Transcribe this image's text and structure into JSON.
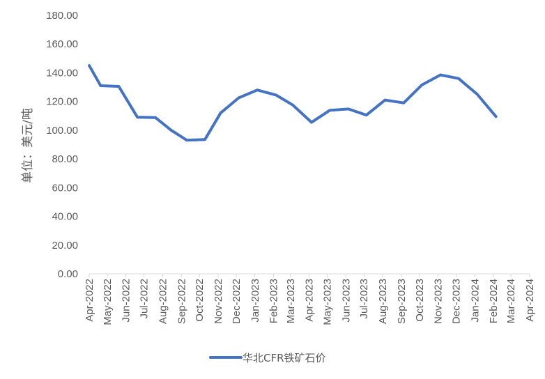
{
  "chart_data": {
    "type": "line",
    "title": "",
    "xlabel": "",
    "ylabel": "单位：美元/吨",
    "ylim": [
      0,
      180
    ],
    "yticks": [
      "0.00",
      "20.00",
      "40.00",
      "60.00",
      "80.00",
      "100.00",
      "120.00",
      "140.00",
      "160.00",
      "180.00"
    ],
    "x_tick_labels": [
      "Apr-2022",
      "May-2022",
      "Jun-2022",
      "Jul-2022",
      "Aug-2022",
      "Sep-2022",
      "Oct-2022",
      "Nov-2022",
      "Dec-2022",
      "Jan-2023",
      "Feb-2023",
      "Mar-2023",
      "Apr-2023",
      "May-2023",
      "Jun-2023",
      "Jul-2023",
      "Aug-2023",
      "Sep-2023",
      "Oct-2023",
      "Nov-2023",
      "Dec-2023",
      "Jan-2024",
      "Feb-2024",
      "Mar-2024",
      "Apr-2024"
    ],
    "x_range": [
      "2022-04-01",
      "2024-04-01"
    ],
    "legend_position": "bottom",
    "grid": false,
    "series": [
      {
        "name": "华北CFR铁矿石价",
        "color": "#4472C4",
        "points": [
          [
            "2022-04-01",
            145.0
          ],
          [
            "2022-04-20",
            131.0
          ],
          [
            "2022-05-20",
            130.5
          ],
          [
            "2022-06-20",
            109.0
          ],
          [
            "2022-07-20",
            108.8
          ],
          [
            "2022-08-15",
            100.0
          ],
          [
            "2022-09-10",
            93.0
          ],
          [
            "2022-10-10",
            93.5
          ],
          [
            "2022-11-05",
            112.0
          ],
          [
            "2022-12-05",
            122.5
          ],
          [
            "2023-01-05",
            128.0
          ],
          [
            "2023-02-05",
            124.5
          ],
          [
            "2023-03-05",
            117.5
          ],
          [
            "2023-04-05",
            105.5
          ],
          [
            "2023-05-05",
            113.8
          ],
          [
            "2023-06-05",
            114.8
          ],
          [
            "2023-07-05",
            110.5
          ],
          [
            "2023-08-05",
            121.0
          ],
          [
            "2023-09-05",
            119.0
          ],
          [
            "2023-10-05",
            131.5
          ],
          [
            "2023-11-05",
            138.5
          ],
          [
            "2023-12-05",
            136.0
          ],
          [
            "2024-01-05",
            125.0
          ],
          [
            "2024-02-05",
            109.5
          ]
        ]
      }
    ]
  }
}
